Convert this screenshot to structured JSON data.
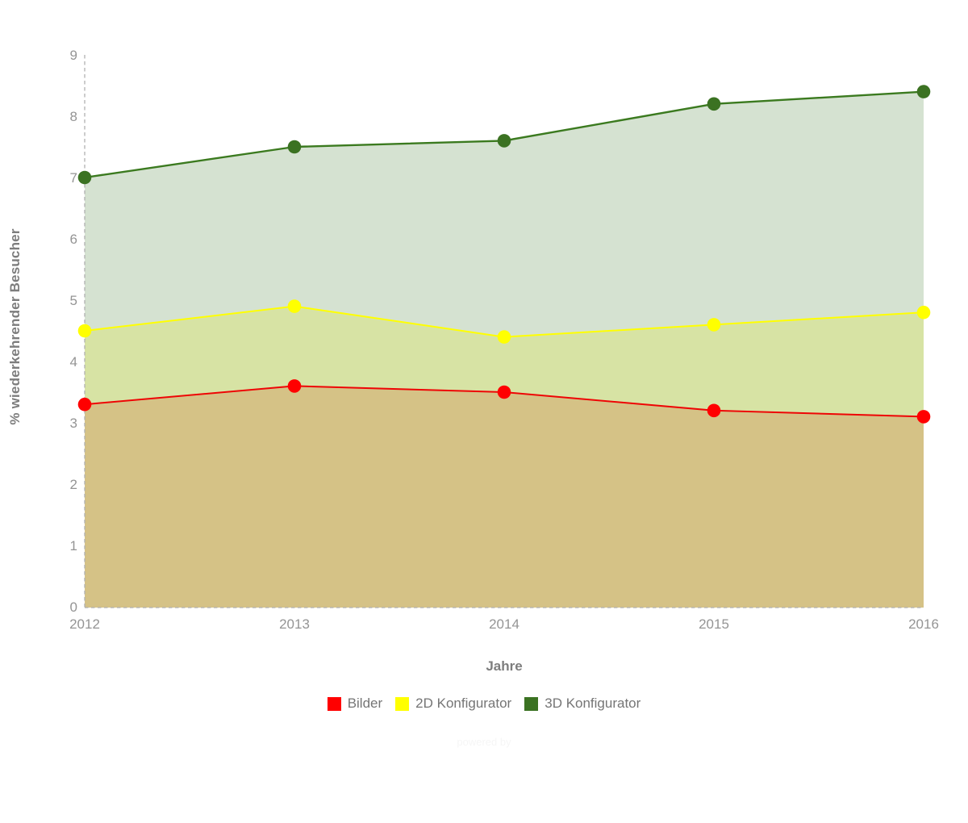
{
  "chart_data": {
    "type": "area",
    "title": "",
    "xlabel": "Jahre",
    "ylabel": "% wiederkehrender Besucher",
    "x": [
      "2012",
      "2013",
      "2014",
      "2015",
      "2016"
    ],
    "ylim": [
      0,
      9
    ],
    "ytick_step": 1,
    "grid": false,
    "legend_position": "bottom",
    "axis_style": "dashed-gray",
    "series": [
      {
        "name": "Bilder",
        "color": "#ee0505",
        "legend_color": "#ff0000",
        "fill": "#d5c286",
        "values": [
          3.3,
          3.6,
          3.5,
          3.2,
          3.1
        ]
      },
      {
        "name": "2D Konfigurator",
        "color": "#ffff00",
        "legend_color": "#ffff00",
        "fill": "#d7e3a4",
        "values": [
          4.5,
          4.9,
          4.4,
          4.6,
          4.8
        ]
      },
      {
        "name": "3D Konfigurator",
        "color": "#3b7a1f",
        "legend_color": "#3b7222",
        "fill": "#d5e2d1",
        "values": [
          7.0,
          7.5,
          7.6,
          8.2,
          8.4
        ]
      }
    ],
    "colors": {
      "tick_label": "#949494",
      "axis_line": "#b0b0b0",
      "background": "#ffffff"
    },
    "watermark": "powered by"
  }
}
